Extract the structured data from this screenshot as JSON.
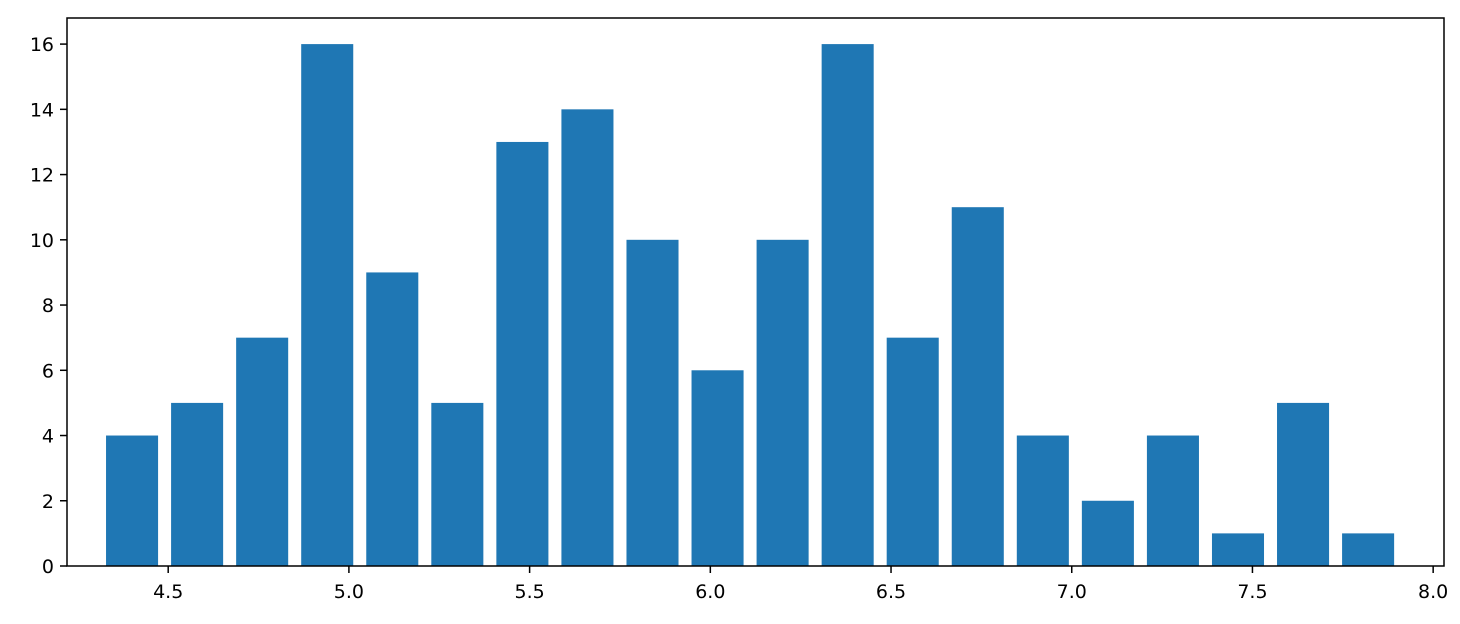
{
  "chart_data": {
    "type": "bar",
    "x": [
      4.4,
      4.58,
      4.76,
      4.94,
      5.12,
      5.3,
      5.48,
      5.66,
      5.84,
      6.02,
      6.2,
      6.38,
      6.56,
      6.74,
      6.92,
      7.1,
      7.28,
      7.46,
      7.64,
      7.82
    ],
    "values": [
      4,
      5,
      7,
      16,
      9,
      5,
      13,
      14,
      10,
      6,
      10,
      16,
      7,
      11,
      4,
      2,
      4,
      1,
      5,
      1
    ],
    "bar_width": 0.144,
    "xlim": [
      4.22,
      8.03
    ],
    "ylim": [
      0,
      16.8
    ],
    "xticks": [
      "4.5",
      "5.0",
      "5.5",
      "6.0",
      "6.5",
      "7.0",
      "7.5",
      "8.0"
    ],
    "yticks": [
      "0",
      "2",
      "4",
      "6",
      "8",
      "10",
      "12",
      "14",
      "16"
    ],
    "color": "#1f77b4",
    "grid": false
  }
}
